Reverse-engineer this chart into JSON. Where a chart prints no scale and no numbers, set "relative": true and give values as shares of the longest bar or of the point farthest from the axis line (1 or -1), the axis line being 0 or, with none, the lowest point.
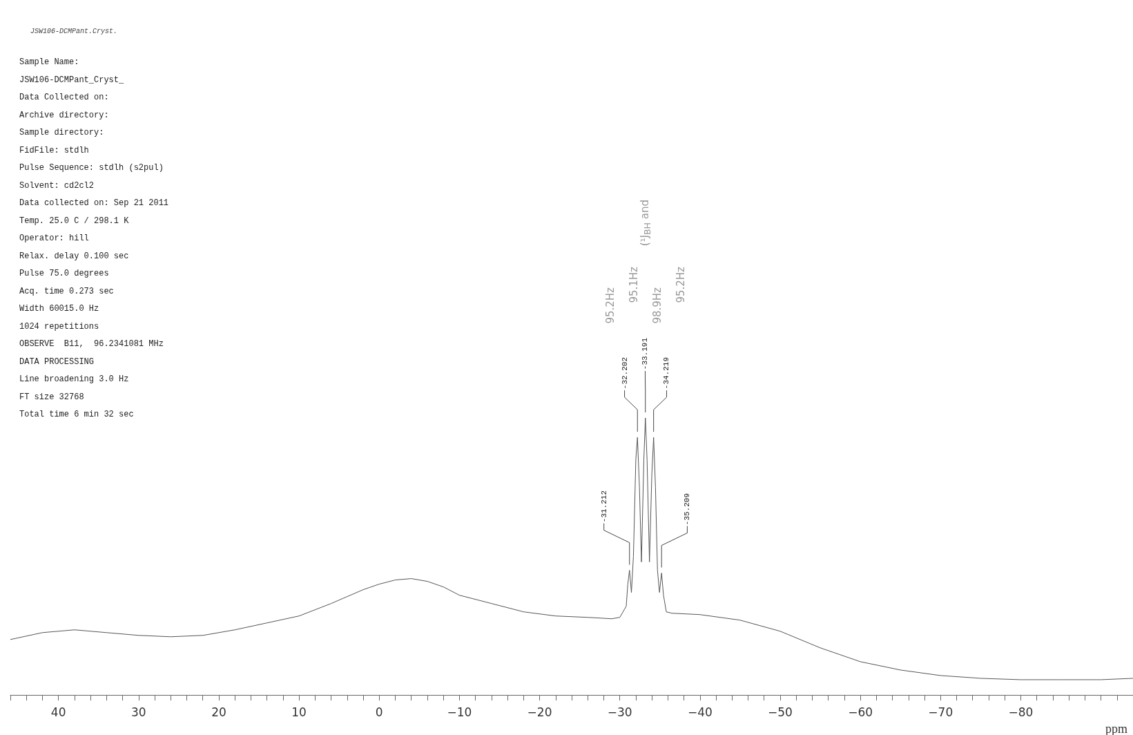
{
  "chart_data": {
    "type": "line",
    "title": "JSW106-DCMPant.Cryst.",
    "xlabel": "ppm",
    "relative": true,
    "marker": "none",
    "line_style": "solid",
    "grid": false,
    "color": "#555555",
    "xlim": [
      46,
      -94
    ],
    "xticks": [
      {
        "value": 46,
        "label": null
      },
      {
        "value": 44,
        "label": null
      },
      {
        "value": 42,
        "label": null
      },
      40,
      {
        "value": 38,
        "label": null
      },
      {
        "value": 36,
        "label": null
      },
      {
        "value": 34,
        "label": null
      },
      {
        "value": 32,
        "label": null
      },
      30,
      {
        "value": 28,
        "label": null
      },
      {
        "value": 26,
        "label": null
      },
      {
        "value": 24,
        "label": null
      },
      {
        "value": 22,
        "label": null
      },
      20,
      {
        "value": 18,
        "label": null
      },
      {
        "value": 16,
        "label": null
      },
      {
        "value": 14,
        "label": null
      },
      {
        "value": 12,
        "label": null
      },
      10,
      {
        "value": 8,
        "label": null
      },
      {
        "value": 6,
        "label": null
      },
      {
        "value": 4,
        "label": null
      },
      {
        "value": 2,
        "label": null
      },
      0,
      {
        "value": -2,
        "label": null
      },
      {
        "value": -4,
        "label": null
      },
      {
        "value": -6,
        "label": null
      },
      {
        "value": -8,
        "label": null
      },
      -10,
      {
        "value": -12,
        "label": null
      },
      {
        "value": -14,
        "label": null
      },
      {
        "value": -16,
        "label": null
      },
      {
        "value": -18,
        "label": null
      },
      -20,
      {
        "value": -22,
        "label": null
      },
      {
        "value": -24,
        "label": null
      },
      {
        "value": -26,
        "label": null
      },
      {
        "value": -28,
        "label": null
      },
      -30,
      {
        "value": -32,
        "label": null
      },
      {
        "value": -34,
        "label": null
      },
      {
        "value": -36,
        "label": null
      },
      {
        "value": -38,
        "label": null
      },
      -40,
      {
        "value": -42,
        "label": null
      },
      {
        "value": -44,
        "label": null
      },
      {
        "value": -46,
        "label": null
      },
      {
        "value": -48,
        "label": null
      },
      -50,
      {
        "value": -52,
        "label": null
      },
      {
        "value": -54,
        "label": null
      },
      {
        "value": -56,
        "label": null
      },
      {
        "value": -58,
        "label": null
      },
      -60,
      {
        "value": -62,
        "label": null
      },
      {
        "value": -64,
        "label": null
      },
      {
        "value": -66,
        "label": null
      },
      {
        "value": -68,
        "label": null
      },
      -70,
      {
        "value": -72,
        "label": null
      },
      {
        "value": -74,
        "label": null
      },
      {
        "value": -76,
        "label": null
      },
      {
        "value": -78,
        "label": null
      },
      -80,
      {
        "value": -82,
        "label": null
      },
      {
        "value": -84,
        "label": null
      },
      {
        "value": -86,
        "label": null
      },
      {
        "value": -88,
        "label": null
      },
      {
        "value": -90,
        "label": null
      },
      {
        "value": -92,
        "label": null
      },
      {
        "value": -94,
        "label": null
      }
    ],
    "x": [
      46,
      42,
      38,
      34,
      30,
      26,
      22,
      18,
      14,
      10,
      6,
      2,
      0,
      -2,
      -4,
      -6,
      -8,
      -10,
      -14,
      -18,
      -22,
      -26,
      -29,
      -30,
      -30.8,
      -31.0,
      -31.212,
      -31.45,
      -31.7,
      -32.0,
      -32.202,
      -32.45,
      -32.7,
      -33.0,
      -33.191,
      -33.4,
      -33.7,
      -34.0,
      -34.219,
      -34.45,
      -34.7,
      -34.95,
      -35.209,
      -35.45,
      -35.8,
      -36.5,
      -40,
      -45,
      -50,
      -55,
      -60,
      -65,
      -70,
      -75,
      -80,
      -85,
      -90,
      -94
    ],
    "values": [
      0.2,
      0.225,
      0.235,
      0.225,
      0.215,
      0.21,
      0.215,
      0.235,
      0.26,
      0.285,
      0.33,
      0.38,
      0.4,
      0.415,
      0.42,
      0.41,
      0.39,
      0.36,
      0.33,
      0.3,
      0.285,
      0.28,
      0.275,
      0.28,
      0.32,
      0.4,
      0.45,
      0.37,
      0.5,
      0.85,
      0.93,
      0.75,
      0.48,
      0.85,
      1,
      0.85,
      0.48,
      0.8,
      0.93,
      0.75,
      0.45,
      0.37,
      0.44,
      0.36,
      0.3,
      0.295,
      0.29,
      0.27,
      0.23,
      0.17,
      0.12,
      0.09,
      0.07,
      0.06,
      0.055,
      0.055,
      0.055,
      0.06
    ],
    "annotations": [
      "Sample Name:",
      "JSW106-DCMPant_Cryst_",
      "Data Collected on:",
      "Archive directory:",
      "Sample directory:",
      "FidFile: stdlh",
      "Pulse Sequence: stdlh (s2pul)",
      "Solvent: cd2cl2",
      "Data collected on: Sep 21 2011",
      "Temp. 25.0 C / 298.1 K",
      "Operator: hill",
      "Relax. delay 0.100 sec",
      "Pulse 75.0 degrees",
      "Acq. time 0.273 sec",
      "Width 60015.0 Hz",
      "1024 repetitions",
      "OBSERVE  B11,  96.2341081 MHz",
      "DATA PROCESSING",
      "Line broadening 3.0 Hz",
      "FT size 32768",
      "Total time 6 min 32 sec",
      {
        "text": "-31.212",
        "x": -31.212,
        "y": 0.45
      },
      {
        "text": "-32.202",
        "x": -32.202,
        "y": 0.93
      },
      {
        "text": "-33.191",
        "x": -33.191,
        "y": 1
      },
      {
        "text": "-34.219",
        "x": -34.219,
        "y": 0.93
      },
      {
        "text": "-35.209",
        "x": -35.209,
        "y": 0.44
      },
      "95.2Hz",
      "95.1Hz",
      "98.9Hz",
      "95.2Hz",
      "(¹J$_{BH}$ and"
    ]
  }
}
